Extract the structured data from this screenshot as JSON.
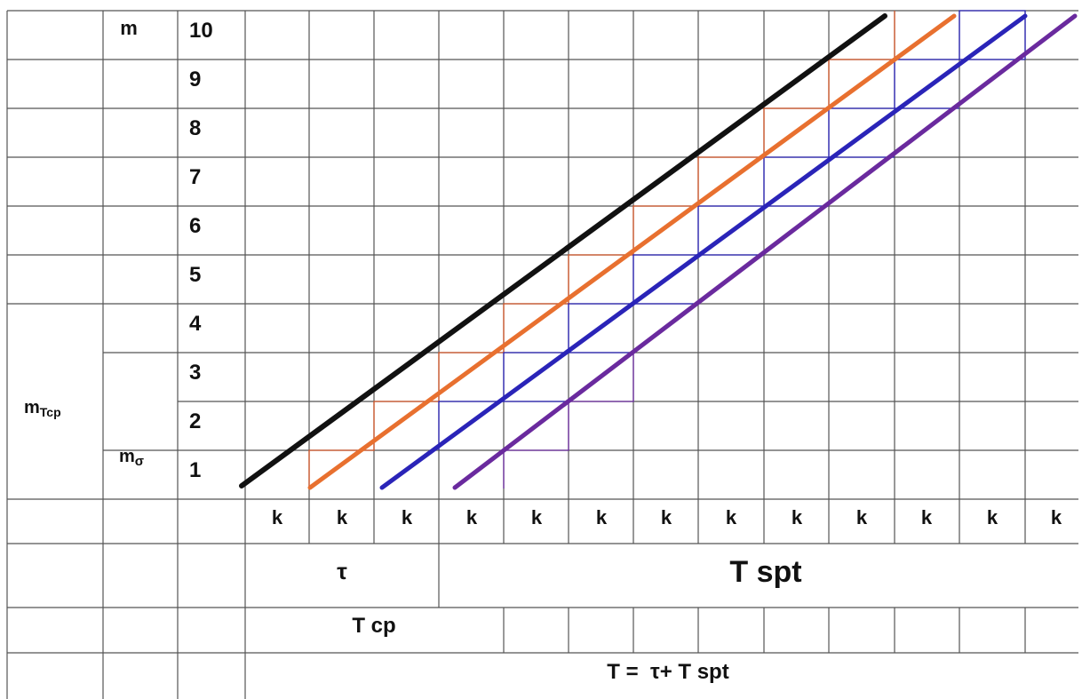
{
  "header": {
    "m_label": "m",
    "m_values": [
      "10",
      "9",
      "8",
      "7",
      "6",
      "5",
      "4",
      "3",
      "2",
      "1"
    ]
  },
  "left_labels": {
    "m_tcp_main": "m",
    "m_tcp_sub": "Tcp",
    "m_sigma_main": "m",
    "m_sigma_sub": "σ"
  },
  "k_row": [
    "k",
    "k",
    "k",
    "k",
    "k",
    "k",
    "k",
    "k",
    "k",
    "k",
    "k",
    "k",
    "k"
  ],
  "tau_label": "τ",
  "t_spt_label": "T spt",
  "t_cp_label": "T cp",
  "t_total_label": "T =  τ+ T spt",
  "colors": {
    "line_black": "#111111",
    "line_orange": "#e8702f",
    "line_blue": "#2a24b8",
    "line_purple": "#6a2a9e",
    "grid": "#555555"
  }
}
